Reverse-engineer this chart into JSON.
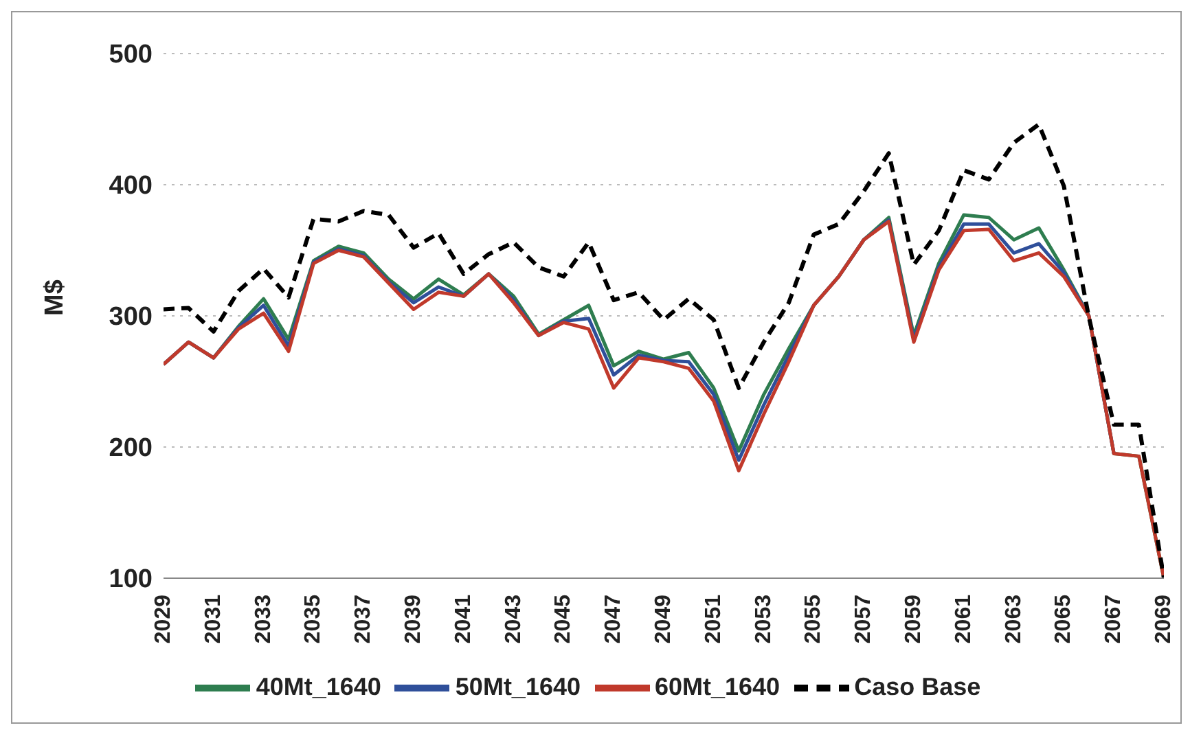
{
  "chart_data": {
    "type": "line",
    "ylabel": "M$",
    "x": [
      2029,
      2030,
      2031,
      2032,
      2033,
      2034,
      2035,
      2036,
      2037,
      2038,
      2039,
      2040,
      2041,
      2042,
      2043,
      2044,
      2045,
      2046,
      2047,
      2048,
      2049,
      2050,
      2051,
      2052,
      2053,
      2054,
      2055,
      2056,
      2057,
      2058,
      2059,
      2060,
      2061,
      2062,
      2063,
      2064,
      2065,
      2066,
      2067,
      2068,
      2069
    ],
    "xlim": [
      2029,
      2069
    ],
    "xticks": [
      2029,
      2031,
      2033,
      2035,
      2037,
      2039,
      2041,
      2043,
      2045,
      2047,
      2049,
      2051,
      2053,
      2055,
      2057,
      2059,
      2061,
      2063,
      2065,
      2067,
      2069
    ],
    "ylim": [
      100,
      500
    ],
    "yticks": [
      100,
      200,
      300,
      400,
      500
    ],
    "grid": "y",
    "legend": "bottom",
    "marker": "none",
    "series": [
      {
        "name": "40Mt_1640",
        "color": "#2e7d4f",
        "values": [
          263,
          280,
          268,
          292,
          313,
          282,
          342,
          353,
          348,
          328,
          313,
          328,
          316,
          332,
          315,
          286,
          297,
          308,
          262,
          273,
          267,
          272,
          245,
          197,
          240,
          275,
          308,
          330,
          358,
          375,
          285,
          340,
          377,
          375,
          358,
          367,
          335,
          300,
          195,
          193,
          100
        ]
      },
      {
        "name": "50Mt_1640",
        "color": "#2f4f9a",
        "values": [
          263,
          280,
          268,
          291,
          308,
          277,
          341,
          351,
          346,
          326,
          310,
          322,
          315,
          332,
          312,
          285,
          296,
          298,
          255,
          270,
          266,
          265,
          240,
          190,
          232,
          270,
          308,
          330,
          358,
          373,
          282,
          337,
          370,
          370,
          348,
          355,
          333,
          300,
          195,
          null,
          null
        ]
      },
      {
        "name": "60Mt_1640",
        "color": "#c0392b",
        "values": [
          263,
          280,
          268,
          290,
          302,
          273,
          340,
          350,
          345,
          325,
          305,
          318,
          315,
          332,
          310,
          285,
          295,
          290,
          245,
          268,
          265,
          260,
          235,
          182,
          225,
          265,
          308,
          330,
          358,
          372,
          280,
          335,
          365,
          366,
          342,
          348,
          330,
          300,
          195,
          193,
          100
        ]
      },
      {
        "name": "Caso Base",
        "color": "#000000",
        "line_style": "dashed",
        "values": [
          305,
          306,
          288,
          319,
          336,
          314,
          374,
          372,
          380,
          377,
          352,
          363,
          332,
          347,
          356,
          337,
          330,
          356,
          312,
          318,
          297,
          313,
          297,
          245,
          280,
          310,
          362,
          370,
          395,
          424,
          339,
          365,
          411,
          404,
          432,
          446,
          399,
          299,
          217,
          217,
          100
        ]
      }
    ]
  }
}
